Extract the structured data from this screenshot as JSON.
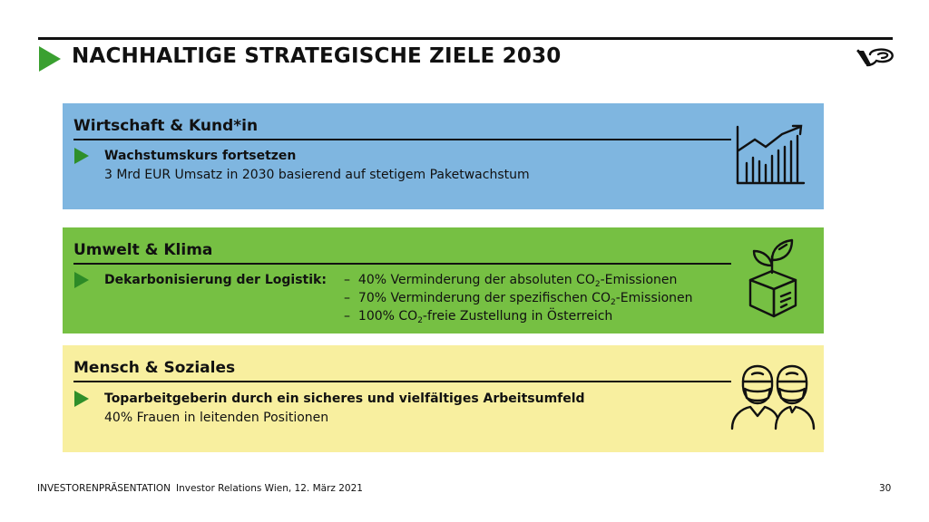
{
  "header": {
    "title": "NACHHALTIGE STRATEGISCHE ZIELE 2030"
  },
  "colors": {
    "accent_green": "#3aa030",
    "panel_blue": "#7fb6e0",
    "panel_green": "#76c043",
    "panel_yellow": "#f8ef9f"
  },
  "sections": [
    {
      "title": "Wirtschaft & Kund*in",
      "icon": "growth-chart-icon",
      "headline": "Wachstumskurs fortsetzen",
      "detail": "3 Mrd EUR Umsatz in 2030 basierend auf stetigem Paketwachstum"
    },
    {
      "title": "Umwelt & Klima",
      "icon": "plant-box-icon",
      "headline": "Dekarbonisierung der Logistik:",
      "items": [
        {
          "dash": "–",
          "pre": "40% Verminderung der absoluten CO",
          "sub": "2",
          "post": "-Emissionen"
        },
        {
          "dash": "–",
          "pre": "70% Verminderung der spezifischen CO",
          "sub": "2",
          "post": "-Emissionen"
        },
        {
          "dash": "–",
          "pre": "100% CO",
          "sub": "2",
          "post": "-freie Zustellung in Österreich"
        }
      ]
    },
    {
      "title": "Mensch & Soziales",
      "icon": "masked-workers-icon",
      "headline": "Toparbeitgeberin durch ein sicheres und vielfältiges Arbeitsumfeld",
      "detail": "40% Frauen in leitenden Positionen"
    }
  ],
  "footer": {
    "presentation": "INVESTORENPRÄSENTATION",
    "info": "Investor Relations Wien, 12. März 2021",
    "page": "30"
  }
}
